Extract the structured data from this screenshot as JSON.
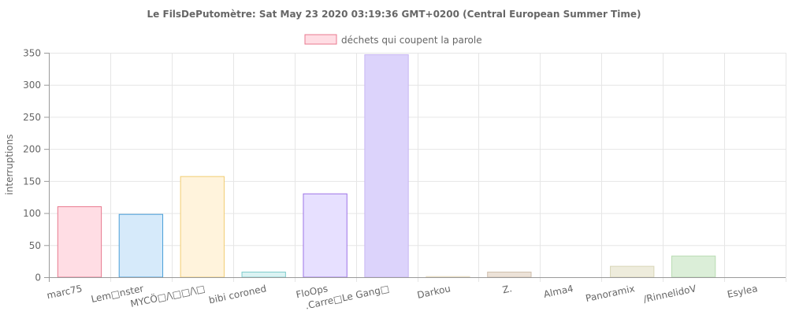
{
  "chart_data": {
    "type": "bar",
    "title": "Le FilsDePutomètre: Sat May 23 2020 03:19:36 GMT+0200 (Central European Summer Time)",
    "ylabel": "interruptions",
    "xlabel": "",
    "legend": {
      "position": "top-center",
      "label": "déchets qui coupent la parole"
    },
    "ylim": [
      0,
      350
    ],
    "yticks": [
      0,
      50,
      100,
      150,
      200,
      250,
      300,
      350
    ],
    "grid": true,
    "categories": [
      "marc75",
      "Lem□nster",
      "MYCÖ□/\\□□/\\□",
      "bibi coroned",
      "FloOps",
      ".Carre□Le Gang□",
      "Darkou",
      "Z.",
      "Alma4",
      "Panoramix",
      "/RinnelidoV",
      "Esylea"
    ],
    "series": [
      {
        "name": "déchets qui coupent la parole",
        "values": [
          110,
          98,
          157,
          8,
          130,
          347,
          1,
          8,
          0,
          17,
          33,
          0
        ]
      }
    ],
    "colors": {
      "fills": [
        "#ffdde4",
        "#d6eafa",
        "#fff3dc",
        "#dbf3f3",
        "#e7e0ff",
        "#dcd3fb",
        "#f5f0e0",
        "#ece2d8",
        "#f0f0f0",
        "#eeecdc",
        "#dbeed8",
        "#f2f2f2"
      ],
      "strokes": [
        "#e8798f",
        "#4a9fd8",
        "#f2cd73",
        "#7fcccc",
        "#9d73e6",
        "#c8b6f2",
        "#e6dcc2",
        "#d0bfae",
        "#cccccc",
        "#d9d6b8",
        "#b9dcb2",
        "#dddddd"
      ],
      "legend_fill": "#ffdde4",
      "legend_stroke": "#e8798f"
    }
  }
}
